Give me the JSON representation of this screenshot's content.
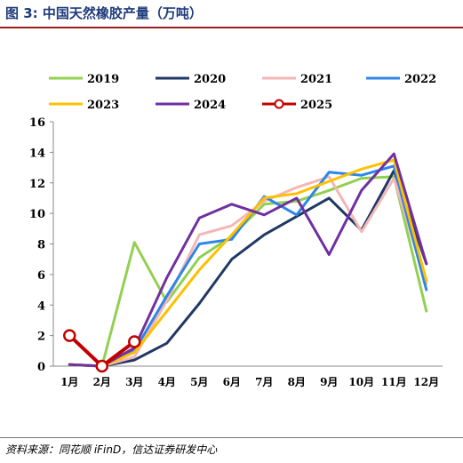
{
  "figure": {
    "title": "图 3:  中国天然橡胶产量（万吨）",
    "source": "资料来源：同花顺 iFinD，信达证券研发中心"
  },
  "chart_data": {
    "type": "line",
    "categories": [
      "1月",
      "2月",
      "3月",
      "4月",
      "5月",
      "6月",
      "7月",
      "8月",
      "9月",
      "10月",
      "11月",
      "12月"
    ],
    "ylim": [
      0,
      16
    ],
    "yticks": [
      0,
      2,
      4,
      6,
      8,
      10,
      12,
      14,
      16
    ],
    "grid": false,
    "legend": "top",
    "series": [
      {
        "name": "2019",
        "color": "#92d050",
        "marker": false,
        "values": [
          0.1,
          0.0,
          8.1,
          4.2,
          7.1,
          8.5,
          10.6,
          10.8,
          11.5,
          12.3,
          12.4,
          3.6
        ]
      },
      {
        "name": "2020",
        "color": "#1f3864",
        "marker": false,
        "values": [
          0.1,
          0.0,
          0.4,
          1.5,
          4.1,
          7.0,
          8.6,
          9.8,
          11.0,
          8.9,
          12.8,
          6.7
        ]
      },
      {
        "name": "2021",
        "color": "#f4b6b6",
        "marker": false,
        "values": [
          0.1,
          0.0,
          0.6,
          4.3,
          8.6,
          9.2,
          10.8,
          11.7,
          12.4,
          8.8,
          12.3,
          5.4
        ]
      },
      {
        "name": "2022",
        "color": "#2e86e8",
        "marker": false,
        "values": [
          0.1,
          0.0,
          1.0,
          4.6,
          8.0,
          8.3,
          11.1,
          9.9,
          12.7,
          12.5,
          13.1,
          5.0
        ]
      },
      {
        "name": "2023",
        "color": "#ffc000",
        "marker": false,
        "values": [
          0.1,
          0.0,
          0.9,
          3.6,
          6.3,
          8.6,
          11.0,
          11.3,
          12.1,
          12.9,
          13.5,
          5.6
        ]
      },
      {
        "name": "2024",
        "color": "#7030a0",
        "marker": false,
        "values": [
          0.1,
          0.0,
          1.2,
          5.8,
          9.7,
          10.6,
          9.9,
          11.0,
          7.3,
          11.5,
          13.9,
          6.7
        ]
      },
      {
        "name": "2025",
        "color": "#c00000",
        "marker": true,
        "values": [
          2.0,
          0.0,
          1.6,
          null,
          null,
          null,
          null,
          null,
          null,
          null,
          null,
          null
        ]
      }
    ]
  }
}
